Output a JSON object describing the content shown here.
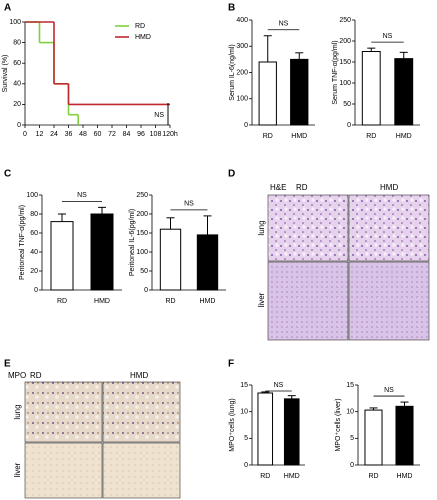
{
  "chart_data": [
    {
      "type": "line",
      "panel": "A",
      "ylabel": "Survival (%)",
      "xlim": [
        0,
        120
      ],
      "ylim": [
        0,
        100
      ],
      "xticks": [
        0,
        12,
        24,
        36,
        48,
        60,
        72,
        84,
        96,
        108,
        {
          "value": 120,
          "label": "120h"
        }
      ],
      "yticks": [
        0,
        20,
        40,
        60,
        80,
        100
      ],
      "legend": "upper right",
      "annotation": "NS",
      "series": [
        {
          "name": "RD",
          "color": "#7fd13b",
          "x": [
            0,
            12,
            24,
            36,
            44
          ],
          "values": [
            100,
            80,
            40,
            10,
            0
          ]
        },
        {
          "name": "HMD",
          "color": "#c0282d",
          "x": [
            0,
            24,
            36,
            120
          ],
          "values": [
            100,
            40,
            20,
            20
          ]
        }
      ]
    },
    {
      "type": "bar",
      "panel": "B",
      "ylabel": "Serum IL-6(ng/ml)",
      "categories": [
        "RD",
        "HMD"
      ],
      "values": [
        240,
        250
      ],
      "errors": [
        100,
        25
      ],
      "colors": [
        "#ffffff",
        "#000000"
      ],
      "ylim": [
        0,
        400
      ],
      "yticks": [
        0,
        100,
        200,
        300,
        400
      ],
      "annotation": "NS"
    },
    {
      "type": "bar",
      "ylabel": "Serum TNF-α(pg/ml)",
      "categories": [
        "RD",
        "HMD"
      ],
      "values": [
        175,
        158
      ],
      "errors": [
        8,
        15
      ],
      "colors": [
        "#ffffff",
        "#000000"
      ],
      "ylim": [
        0,
        250
      ],
      "yticks": [
        0,
        50,
        100,
        150,
        200,
        250
      ],
      "annotation": "NS"
    },
    {
      "type": "bar",
      "panel": "C",
      "ylabel": "Peritoneal  TNF-α(pg/ml)",
      "categories": [
        "RD",
        "HMD"
      ],
      "values": [
        72,
        80
      ],
      "errors": [
        8,
        7
      ],
      "colors": [
        "#ffffff",
        "#000000"
      ],
      "ylim": [
        0,
        100
      ],
      "yticks": [
        0,
        20,
        40,
        60,
        80,
        100
      ],
      "annotation": "NS"
    },
    {
      "type": "bar",
      "ylabel": "Peritoneal IL-6(pg/ml)",
      "categories": [
        "RD",
        "HMD"
      ],
      "values": [
        160,
        145
      ],
      "errors": [
        30,
        50
      ],
      "colors": [
        "#ffffff",
        "#000000"
      ],
      "ylim": [
        0,
        250
      ],
      "yticks": [
        0,
        50,
        100,
        150,
        200,
        250
      ],
      "annotation": "NS"
    },
    {
      "type": "bar",
      "panel": "F",
      "ylabel": "MPO⁺cells (lung)",
      "categories": [
        "RD",
        "HMD"
      ],
      "values": [
        13.5,
        12.4
      ],
      "errors": [
        0.2,
        0.6
      ],
      "colors": [
        "#ffffff",
        "#000000"
      ],
      "ylim": [
        0,
        15
      ],
      "yticks": [
        0,
        5,
        10,
        15
      ],
      "annotation": "NS"
    },
    {
      "type": "bar",
      "ylabel": "MPO⁺cells (liver)",
      "categories": [
        "RD",
        "HMD"
      ],
      "values": [
        10.3,
        11
      ],
      "errors": [
        0.4,
        0.8
      ],
      "colors": [
        "#ffffff",
        "#000000"
      ],
      "ylim": [
        0,
        15
      ],
      "yticks": [
        0,
        5,
        10,
        15
      ],
      "annotation": "NS"
    }
  ],
  "panels": {
    "D": {
      "label": "D",
      "stain": "H&E",
      "columns": [
        "RD",
        "HMD"
      ],
      "rows": [
        "lung",
        "liver"
      ]
    },
    "E": {
      "label": "E",
      "stain": "MPO",
      "columns": [
        "RD",
        "HMD"
      ],
      "rows": [
        "lung",
        "liver"
      ]
    }
  }
}
